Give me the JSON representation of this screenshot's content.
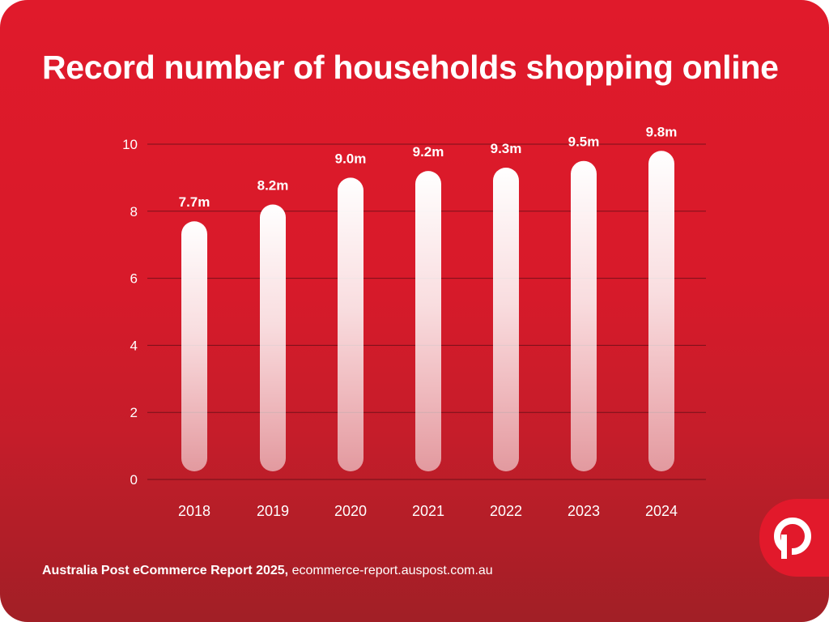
{
  "title": "Record number of households shopping online",
  "footer": {
    "source": "Australia Post eCommerce Report 2025,",
    "url": "ecommerce-report.auspost.com.au"
  },
  "logo": {
    "icon": "australia-post-logo-icon"
  },
  "colors": {
    "background_top": "#e01a2b",
    "background_bottom": "#a11f26",
    "bar": "#ffffff",
    "text": "#ffffff",
    "gridline": "#5a0d14"
  },
  "chart_data": {
    "type": "bar",
    "title": "Record number of households shopping online",
    "xlabel": "",
    "ylabel": "",
    "categories": [
      "2018",
      "2019",
      "2020",
      "2021",
      "2022",
      "2023",
      "2024"
    ],
    "values": [
      7.7,
      8.2,
      9.0,
      9.2,
      9.3,
      9.5,
      9.8
    ],
    "data_labels": [
      "7.7m",
      "8.2m",
      "9.0m",
      "9.2m",
      "9.3m",
      "9.5m",
      "9.8m"
    ],
    "ylim": [
      0,
      10
    ],
    "yticks": [
      0,
      2,
      4,
      6,
      8,
      10
    ],
    "grid": true,
    "legend": "none"
  }
}
